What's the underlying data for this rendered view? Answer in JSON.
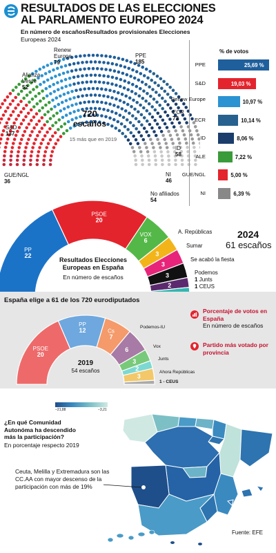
{
  "header": {
    "title_line1": "RESULTADOS DE LAS ELECCIONES",
    "title_line2": "AL PARLAMENTO EUROPEO 2024",
    "subtitle_bold": "En número de escaños",
    "subtitle_rest": "Resultados provisionales Elecciones",
    "subtitle_line2": "Europeas 2024"
  },
  "hemicycle": {
    "total": "720",
    "total_label": "escaños",
    "note": "15 más que en 2019",
    "groups": [
      {
        "name": "GUE/NGL",
        "seats": "36",
        "color": "#c7283a"
      },
      {
        "name": "S&D",
        "seats": "137",
        "color": "#e4242d"
      },
      {
        "name": "Alianza Verde",
        "seats": "52",
        "color": "#3a9b3a"
      },
      {
        "name": "Renew Europe",
        "seats": "79",
        "color": "#2b93d1"
      },
      {
        "name": "PPE",
        "seats": "185",
        "color": "#1f5f9c"
      },
      {
        "name": "ECR",
        "seats": "73",
        "color": "#27618f"
      },
      {
        "name": "ID",
        "seats": "58",
        "color": "#1a3d6b"
      },
      {
        "name": "NI",
        "seats": "46",
        "color": "#9a9a9a"
      },
      {
        "name": "No afiliados",
        "seats": "54",
        "color": "#c8c8c8"
      }
    ]
  },
  "votes": {
    "title": "% de votos",
    "rows": [
      {
        "label": "PPE",
        "value": 25.69,
        "text": "25,69 %",
        "color": "#1f5f9c"
      },
      {
        "label": "S&D",
        "value": 19.03,
        "text": "19,03 %",
        "color": "#e4242d"
      },
      {
        "label": "Renew Europe",
        "value": 10.97,
        "text": "10,97 %",
        "color": "#2b93d1"
      },
      {
        "label": "ECR",
        "value": 10.14,
        "text": "10,14 %",
        "color": "#27618f"
      },
      {
        "label": "ID",
        "value": 8.06,
        "text": "8,06 %",
        "color": "#1a3d6b"
      },
      {
        "label": "ALE",
        "value": 7.22,
        "text": "7,22 %",
        "color": "#3a9b3a"
      },
      {
        "label": "GUE/NGL",
        "value": 5.0,
        "text": "5,00 %",
        "color": "#e4242d"
      },
      {
        "label": "NI",
        "value": 6.39,
        "text": "6,39 %",
        "color": "#888888"
      }
    ]
  },
  "spain2024": {
    "year": "2024",
    "seats_label": "61 escaños",
    "center_title": "Resultados Elecciones Europeas en España",
    "center_sub": "En número de escaños",
    "parties": [
      {
        "name": "PP",
        "seats": 22,
        "text": "22",
        "color": "#1b73c7"
      },
      {
        "name": "PSOE",
        "seats": 20,
        "text": "20",
        "color": "#e4242d"
      },
      {
        "name": "VOX",
        "seats": 6,
        "text": "6",
        "color": "#54b848"
      },
      {
        "name": "Sumar",
        "seats": 3,
        "text": "3",
        "color": "#e8247a"
      },
      {
        "name": "Se acabó la fiesta",
        "seats": 3,
        "text": "3",
        "color": "#111111"
      },
      {
        "name": "Podemos",
        "seats": 2,
        "text": "2",
        "color": "#5b2a6e"
      },
      {
        "name": "Junts",
        "seats": 1,
        "text": "1",
        "color": "#33b6b0"
      },
      {
        "name": "CEUS",
        "seats": 1,
        "text": "1",
        "color": "#888888"
      }
    ],
    "extra_label": "A. Repúblicas",
    "extra_seats": "3",
    "extra_color": "#f3b41a"
  },
  "spain2019": {
    "header": "España elige a 61 de los 720 eurodiputados",
    "year": "2019",
    "seats_label": "54 escaños",
    "parties": [
      {
        "name": "PSOE",
        "seats": 20,
        "text": "20",
        "color": "#ee6a6a"
      },
      {
        "name": "PP",
        "seats": 12,
        "text": "12",
        "color": "#6ea8de"
      },
      {
        "name": "Cs",
        "seats": 7,
        "text": "7",
        "color": "#f59a6a"
      },
      {
        "name": "Podemos-IU",
        "seats": 6,
        "text": "6",
        "color": "#a77ba5"
      },
      {
        "name": "Vox",
        "seats": 3,
        "text": "3",
        "color": "#79c97a"
      },
      {
        "name": "Junts",
        "seats": 2,
        "text": "2",
        "color": "#7ed8d2"
      },
      {
        "name": "Ahora Repúblicas",
        "seats": 3,
        "text": "3",
        "color": "#f2c86a"
      },
      {
        "name": "CEUS",
        "seats": 1,
        "text": "1 - CEUS",
        "color": "#aaaaaa"
      }
    ],
    "legend": [
      {
        "bold": "Porcentaje de votos en España",
        "rest": "En número de escaños"
      },
      {
        "bold": "Partido más votado por provincia",
        "rest": ""
      }
    ]
  },
  "map": {
    "question": "¿En qué Comunidad Autonóma ha descendido más la participación?",
    "question_sub": "En porcentaje respecto 2019",
    "note": "Ceuta, Melilla y Extremadura son las CC.AA con mayor descenso de la participación con más de 19%",
    "scale_min": "−21,88",
    "scale_max": "−3,21",
    "source": "Fuente: EFE"
  },
  "chart_data": [
    {
      "type": "pie",
      "title": "RESULTADOS DE LAS ELECCIONES AL PARLAMENTO EUROPEO 2024",
      "categories": [
        "GUE/NGL",
        "S&D",
        "Alianza Verde",
        "Renew Europe",
        "PPE",
        "ECR",
        "ID",
        "NI",
        "No afiliados"
      ],
      "values": [
        36,
        137,
        52,
        79,
        185,
        73,
        58,
        46,
        54
      ]
    },
    {
      "type": "bar",
      "title": "% de votos",
      "categories": [
        "PPE",
        "S&D",
        "Renew Europe",
        "ECR",
        "ID",
        "ALE",
        "GUE/NGL",
        "NI"
      ],
      "values": [
        25.69,
        19.03,
        10.97,
        10.14,
        8.06,
        7.22,
        5.0,
        6.39
      ]
    },
    {
      "type": "pie",
      "title": "Resultados Elecciones Europeas en España",
      "categories": [
        "PP",
        "PSOE",
        "VOX",
        "Sumar",
        "Se acabó la fiesta",
        "Podemos",
        "Junts",
        "CEUS"
      ],
      "values": [
        22,
        20,
        6,
        3,
        3,
        2,
        1,
        1
      ]
    },
    {
      "type": "pie",
      "title": "España elige a 61 de los 720 eurodiputados",
      "categories": [
        "PSOE",
        "PP",
        "Cs",
        "Podemos-IU",
        "Vox",
        "Junts",
        "Ahora Repúblicas",
        "CEUS"
      ],
      "values": [
        20,
        12,
        7,
        6,
        3,
        2,
        3,
        1
      ]
    }
  ]
}
